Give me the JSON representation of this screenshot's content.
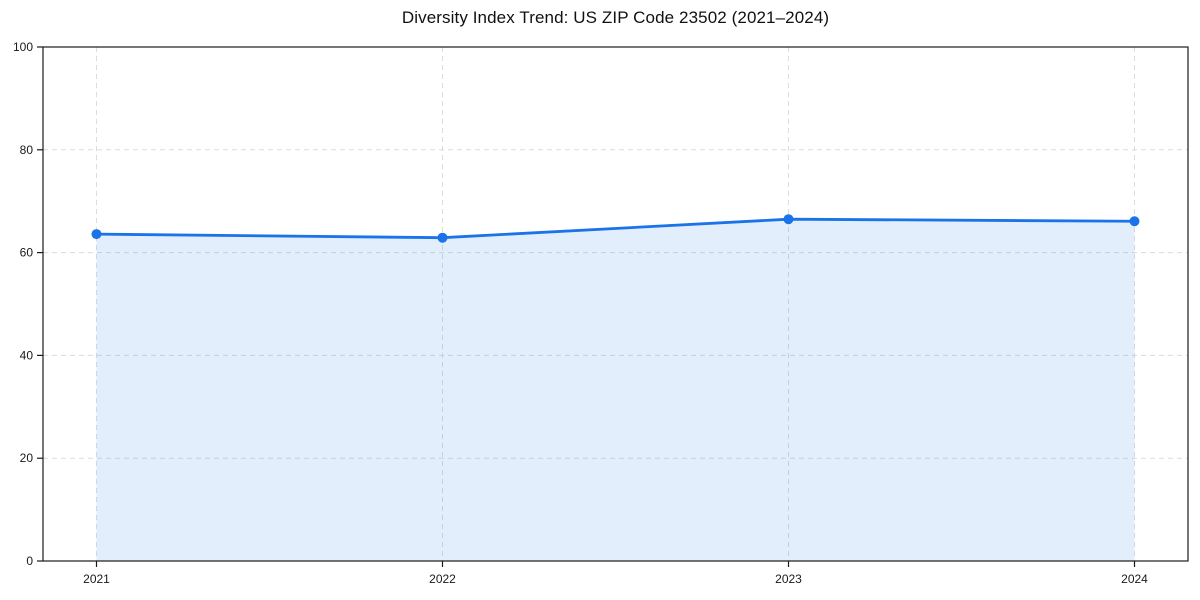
{
  "chart": {
    "title_label": "Diversity Index Trend: US ZIP Code 23502 (2021–2024)"
  },
  "chart_data": {
    "type": "area",
    "title": "Diversity Index Trend: US ZIP Code 23502 (2021–2024)",
    "categories": [
      "2021",
      "2022",
      "2023",
      "2024"
    ],
    "series": [
      {
        "name": "Diversity Index",
        "values": [
          63.6,
          62.9,
          66.5,
          66.1
        ]
      }
    ],
    "xlabel": "",
    "ylabel": "",
    "ylim": [
      0,
      100
    ],
    "yticks": [
      0,
      20,
      40,
      60,
      80,
      100
    ],
    "grid": true,
    "grid_style": "dashed",
    "legend": false,
    "colors": {
      "line": "#1a73e8",
      "marker": "#1a73e8",
      "fill": "#1a73e8",
      "fill_opacity": 0.12,
      "grid": "#dcdcdc",
      "spine": "#1a1a1a",
      "tick_label": "#1a1a1a",
      "title": "#111111"
    }
  }
}
